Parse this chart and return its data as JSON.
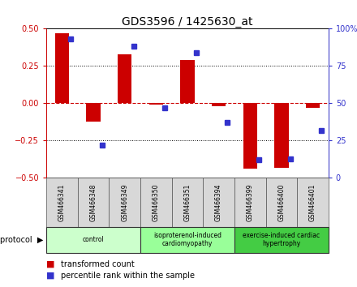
{
  "title": "GDS3596 / 1425630_at",
  "samples": [
    "GSM466341",
    "GSM466348",
    "GSM466349",
    "GSM466350",
    "GSM466351",
    "GSM466394",
    "GSM466399",
    "GSM466400",
    "GSM466401"
  ],
  "transformed_count": [
    0.47,
    -0.12,
    0.33,
    -0.01,
    0.29,
    -0.02,
    -0.44,
    -0.43,
    -0.03
  ],
  "percentile_rank": [
    93,
    22,
    88,
    47,
    84,
    37,
    12,
    13,
    32
  ],
  "bar_color": "#cc0000",
  "dot_color": "#3333cc",
  "ylim_left": [
    -0.5,
    0.5
  ],
  "ylim_right": [
    0,
    100
  ],
  "yticks_left": [
    -0.5,
    -0.25,
    0.0,
    0.25,
    0.5
  ],
  "yticks_right": [
    0,
    25,
    50,
    75,
    100
  ],
  "zero_line_color": "#cc0000",
  "dot_line_color": "#3333cc",
  "grid_color": "#000000",
  "title_fontsize": 10,
  "tick_fontsize": 7,
  "group_info": [
    {
      "label": "control",
      "cols": [
        0,
        1,
        2
      ],
      "color": "#ccffcc"
    },
    {
      "label": "isoproterenol-induced\ncardiomyopathy",
      "cols": [
        3,
        4,
        5
      ],
      "color": "#99ff99"
    },
    {
      "label": "exercise-induced cardiac\nhypertrophy",
      "cols": [
        6,
        7,
        8
      ],
      "color": "#44cc44"
    }
  ]
}
